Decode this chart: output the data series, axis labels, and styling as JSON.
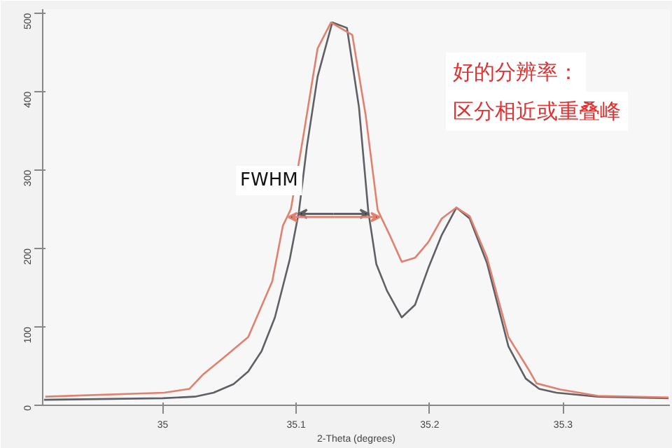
{
  "chart_data": {
    "type": "line",
    "xlabel": "2-Theta (degrees)",
    "xlim": [
      34.91,
      35.38
    ],
    "xticks": [
      35,
      35.1,
      35.2,
      35.3
    ],
    "ylim": [
      0,
      505
    ],
    "yticks": [
      0,
      100,
      200,
      300,
      400,
      500
    ],
    "grid": false,
    "marker": "none",
    "line_style": "solid",
    "annotations": [
      "FWHM",
      "好的分辨率：",
      "区分相近或重叠峰"
    ],
    "series": [
      {
        "color": "#5f5f66",
        "x": [
          34.911,
          35.0,
          35.024,
          35.038,
          35.053,
          35.064,
          35.074,
          35.084,
          35.095,
          35.102,
          35.108,
          35.116,
          35.127,
          35.138,
          35.147,
          35.154,
          35.16,
          35.168,
          35.179,
          35.189,
          35.199,
          35.209,
          35.22,
          35.23,
          35.243,
          35.259,
          35.272,
          35.282,
          35.295,
          35.326,
          35.379
        ],
        "values": [
          7,
          9,
          11,
          16,
          27,
          43,
          69,
          112,
          185,
          247,
          330,
          419,
          488,
          481,
          380,
          247,
          180,
          146,
          112,
          128,
          175,
          217,
          252,
          238,
          181,
          75,
          34,
          21,
          16,
          11,
          9
        ]
      },
      {
        "color": "#e0806e",
        "x": [
          34.912,
          35.001,
          35.02,
          35.03,
          35.043,
          35.064,
          35.082,
          35.09,
          35.096,
          35.105,
          35.116,
          35.126,
          35.142,
          35.152,
          35.161,
          35.17,
          35.179,
          35.189,
          35.199,
          35.209,
          35.22,
          35.23,
          35.243,
          35.259,
          35.274,
          35.28,
          35.298,
          35.326,
          35.379
        ],
        "values": [
          11,
          16,
          21,
          39,
          57,
          87,
          158,
          229,
          250,
          340,
          455,
          488,
          472,
          370,
          249,
          217,
          183,
          188,
          208,
          238,
          252,
          241,
          188,
          87,
          46,
          28,
          20,
          12,
          10
        ]
      }
    ]
  }
}
